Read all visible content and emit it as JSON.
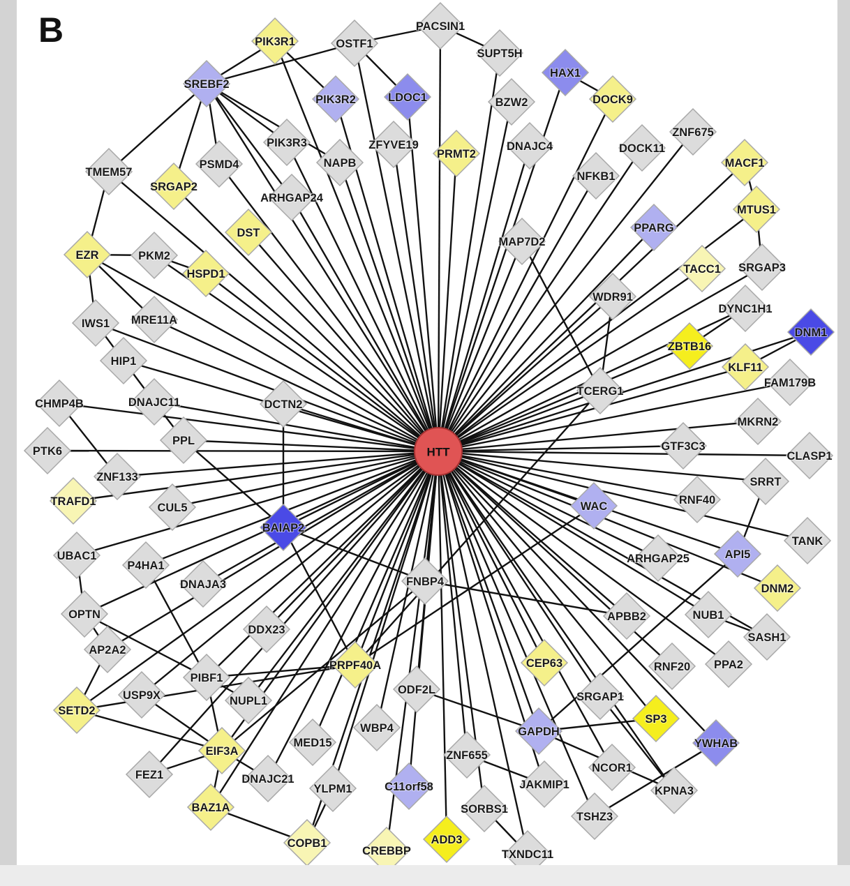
{
  "figure": {
    "panel_letter": "B",
    "hub": {
      "id": "HTT",
      "label": "HTT",
      "color": "#e05454"
    },
    "colors": {
      "gray": "#dcdcdc",
      "yellow": "#f5f08a",
      "light_yellow": "#f8f5b4",
      "bright_yellow": "#f5ee1e",
      "light_blue": "#b0b0f0",
      "blue": "#8c8ced",
      "dark_blue": "#4a4ae6",
      "outline": "#a8a8a8"
    },
    "nodes": [
      {
        "id": "PACSIN1",
        "label": "PACSIN1",
        "color": "gray"
      },
      {
        "id": "PIK3R1",
        "label": "PIK3R1",
        "color": "yellow"
      },
      {
        "id": "OSTF1",
        "label": "OSTF1",
        "color": "gray"
      },
      {
        "id": "SUPT5H",
        "label": "SUPT5H",
        "color": "gray"
      },
      {
        "id": "HAX1",
        "label": "HAX1",
        "color": "blue"
      },
      {
        "id": "SREBF2",
        "label": "SREBF2",
        "color": "light_blue"
      },
      {
        "id": "PIK3R2",
        "label": "PIK3R2",
        "color": "light_blue"
      },
      {
        "id": "LDOC1",
        "label": "LDOC1",
        "color": "blue"
      },
      {
        "id": "DOCK9",
        "label": "DOCK9",
        "color": "yellow"
      },
      {
        "id": "BZW2",
        "label": "BZW2",
        "color": "gray"
      },
      {
        "id": "PIK3R3",
        "label": "PIK3R3",
        "color": "gray"
      },
      {
        "id": "ZFYVE19",
        "label": "ZFYVE19",
        "color": "gray"
      },
      {
        "id": "PRMT2",
        "label": "PRMT2",
        "color": "yellow"
      },
      {
        "id": "DNAJC4",
        "label": "DNAJC4",
        "color": "gray"
      },
      {
        "id": "DOCK11",
        "label": "DOCK11",
        "color": "gray"
      },
      {
        "id": "ZNF675",
        "label": "ZNF675",
        "color": "gray"
      },
      {
        "id": "TMEM57",
        "label": "TMEM57",
        "color": "gray"
      },
      {
        "id": "PSMD4",
        "label": "PSMD4",
        "color": "gray"
      },
      {
        "id": "NAPB",
        "label": "NAPB",
        "color": "gray"
      },
      {
        "id": "NFKB1",
        "label": "NFKB1",
        "color": "gray"
      },
      {
        "id": "MACF1",
        "label": "MACF1",
        "color": "yellow"
      },
      {
        "id": "SRGAP2",
        "label": "SRGAP2",
        "color": "yellow"
      },
      {
        "id": "ARHGAP24",
        "label": "ARHGAP24",
        "color": "gray"
      },
      {
        "id": "MTUS1",
        "label": "MTUS1",
        "color": "yellow"
      },
      {
        "id": "DST",
        "label": "DST",
        "color": "yellow"
      },
      {
        "id": "PPARG",
        "label": "PPARG",
        "color": "light_blue"
      },
      {
        "id": "MAP7D2",
        "label": "MAP7D2",
        "color": "gray"
      },
      {
        "id": "EZR",
        "label": "EZR",
        "color": "yellow"
      },
      {
        "id": "PKM2",
        "label": "PKM2",
        "color": "gray"
      },
      {
        "id": "HSPD1",
        "label": "HSPD1",
        "color": "yellow"
      },
      {
        "id": "TACC1",
        "label": "TACC1",
        "color": "light_yellow"
      },
      {
        "id": "SRGAP3",
        "label": "SRGAP3",
        "color": "gray"
      },
      {
        "id": "WDR91",
        "label": "WDR91",
        "color": "gray"
      },
      {
        "id": "IWS1",
        "label": "IWS1",
        "color": "gray"
      },
      {
        "id": "MRE11A",
        "label": "MRE11A",
        "color": "gray"
      },
      {
        "id": "DYNC1H1",
        "label": "DYNC1H1",
        "color": "gray"
      },
      {
        "id": "DNM1",
        "label": "DNM1",
        "color": "dark_blue"
      },
      {
        "id": "ZBTB16",
        "label": "ZBTB16",
        "color": "bright_yellow"
      },
      {
        "id": "HIP1",
        "label": "HIP1",
        "color": "gray"
      },
      {
        "id": "KLF11",
        "label": "KLF11",
        "color": "yellow"
      },
      {
        "id": "FAM179B",
        "label": "FAM179B",
        "color": "gray"
      },
      {
        "id": "CHMP4B",
        "label": "CHMP4B",
        "color": "gray"
      },
      {
        "id": "DNAJC11",
        "label": "DNAJC11",
        "color": "gray"
      },
      {
        "id": "DCTN2",
        "label": "DCTN2",
        "color": "gray"
      },
      {
        "id": "TCERG1",
        "label": "TCERG1",
        "color": "gray"
      },
      {
        "id": "MKRN2",
        "label": "MKRN2",
        "color": "gray"
      },
      {
        "id": "PTK6",
        "label": "PTK6",
        "color": "gray"
      },
      {
        "id": "PPL",
        "label": "PPL",
        "color": "gray"
      },
      {
        "id": "GTF3C3",
        "label": "GTF3C3",
        "color": "gray"
      },
      {
        "id": "CLASP1",
        "label": "CLASP1",
        "color": "gray"
      },
      {
        "id": "ZNF133",
        "label": "ZNF133",
        "color": "gray"
      },
      {
        "id": "SRRT",
        "label": "SRRT",
        "color": "gray"
      },
      {
        "id": "TRAFD1",
        "label": "TRAFD1",
        "color": "light_yellow"
      },
      {
        "id": "CUL5",
        "label": "CUL5",
        "color": "gray"
      },
      {
        "id": "RNF40",
        "label": "RNF40",
        "color": "gray"
      },
      {
        "id": "WAC",
        "label": "WAC",
        "color": "light_blue"
      },
      {
        "id": "BAIAP2",
        "label": "BAIAP2",
        "color": "dark_blue"
      },
      {
        "id": "TANK",
        "label": "TANK",
        "color": "gray"
      },
      {
        "id": "UBAC1",
        "label": "UBAC1",
        "color": "gray"
      },
      {
        "id": "P4HA1",
        "label": "P4HA1",
        "color": "gray"
      },
      {
        "id": "ARHGAP25",
        "label": "ARHGAP25",
        "color": "gray"
      },
      {
        "id": "API5",
        "label": "API5",
        "color": "light_blue"
      },
      {
        "id": "DNAJA3",
        "label": "DNAJA3",
        "color": "gray"
      },
      {
        "id": "FNBP4",
        "label": "FNBP4",
        "color": "gray"
      },
      {
        "id": "DNM2",
        "label": "DNM2",
        "color": "yellow"
      },
      {
        "id": "OPTN",
        "label": "OPTN",
        "color": "gray"
      },
      {
        "id": "APBB2",
        "label": "APBB2",
        "color": "gray"
      },
      {
        "id": "NUB1",
        "label": "NUB1",
        "color": "gray"
      },
      {
        "id": "DDX23",
        "label": "DDX23",
        "color": "gray"
      },
      {
        "id": "SASH1",
        "label": "SASH1",
        "color": "gray"
      },
      {
        "id": "AP2A2",
        "label": "AP2A2",
        "color": "gray"
      },
      {
        "id": "PRPF40A",
        "label": "PRPF40A",
        "color": "yellow"
      },
      {
        "id": "CEP63",
        "label": "CEP63",
        "color": "yellow"
      },
      {
        "id": "RNF20",
        "label": "RNF20",
        "color": "gray"
      },
      {
        "id": "PPA2",
        "label": "PPA2",
        "color": "gray"
      },
      {
        "id": "PIBF1",
        "label": "PIBF1",
        "color": "gray"
      },
      {
        "id": "USP9X",
        "label": "USP9X",
        "color": "gray"
      },
      {
        "id": "ODF2L",
        "label": "ODF2L",
        "color": "gray"
      },
      {
        "id": "SRGAP1",
        "label": "SRGAP1",
        "color": "gray"
      },
      {
        "id": "SETD2",
        "label": "SETD2",
        "color": "yellow"
      },
      {
        "id": "NUPL1",
        "label": "NUPL1",
        "color": "gray"
      },
      {
        "id": "SP3",
        "label": "SP3",
        "color": "bright_yellow"
      },
      {
        "id": "MED15",
        "label": "MED15",
        "color": "gray"
      },
      {
        "id": "WBP4",
        "label": "WBP4",
        "color": "gray"
      },
      {
        "id": "GAPDH",
        "label": "GAPDH",
        "color": "light_blue"
      },
      {
        "id": "YWHAB",
        "label": "YWHAB",
        "color": "blue"
      },
      {
        "id": "EIF3A",
        "label": "EIF3A",
        "color": "yellow"
      },
      {
        "id": "ZNF655",
        "label": "ZNF655",
        "color": "gray"
      },
      {
        "id": "NCOR1",
        "label": "NCOR1",
        "color": "gray"
      },
      {
        "id": "FEZ1",
        "label": "FEZ1",
        "color": "gray"
      },
      {
        "id": "DNAJC21",
        "label": "DNAJC21",
        "color": "gray"
      },
      {
        "id": "YLPM1",
        "label": "YLPM1",
        "color": "gray"
      },
      {
        "id": "C11orf58",
        "label": "C11orf58",
        "color": "light_blue"
      },
      {
        "id": "JAKMIP1",
        "label": "JAKMIP1",
        "color": "gray"
      },
      {
        "id": "KPNA3",
        "label": "KPNA3",
        "color": "gray"
      },
      {
        "id": "SORBS1",
        "label": "SORBS1",
        "color": "gray"
      },
      {
        "id": "BAZ1A",
        "label": "BAZ1A",
        "color": "yellow"
      },
      {
        "id": "TSHZ3",
        "label": "TSHZ3",
        "color": "gray"
      },
      {
        "id": "COPB1",
        "label": "COPB1",
        "color": "light_yellow"
      },
      {
        "id": "CREBBP",
        "label": "CREBBP",
        "color": "light_yellow"
      },
      {
        "id": "ADD3",
        "label": "ADD3",
        "color": "bright_yellow"
      },
      {
        "id": "TXNDC11",
        "label": "TXNDC11",
        "color": "gray"
      }
    ],
    "extra_edges": [
      [
        "SREBF2",
        "PIK3R1"
      ],
      [
        "SREBF2",
        "OSTF1"
      ],
      [
        "OSTF1",
        "PACSIN1"
      ],
      [
        "PACSIN1",
        "SUPT5H"
      ],
      [
        "PIK3R1",
        "PIK3R2"
      ],
      [
        "OSTF1",
        "LDOC1"
      ],
      [
        "HAX1",
        "DOCK9"
      ],
      [
        "SREBF2",
        "PIK3R3"
      ],
      [
        "SREBF2",
        "PSMD4"
      ],
      [
        "SREBF2",
        "SRGAP2"
      ],
      [
        "SREBF2",
        "TMEM57"
      ],
      [
        "SREBF2",
        "ARHGAP24"
      ],
      [
        "SREBF2",
        "NAPB"
      ],
      [
        "TMEM57",
        "EZR"
      ],
      [
        "EZR",
        "PKM2"
      ],
      [
        "PKM2",
        "HSPD1"
      ],
      [
        "EZR",
        "IWS1"
      ],
      [
        "EZR",
        "MRE11A"
      ],
      [
        "IWS1",
        "HIP1"
      ],
      [
        "HIP1",
        "DNAJC11"
      ],
      [
        "DNAJC11",
        "PPL"
      ],
      [
        "PPL",
        "BAIAP2"
      ],
      [
        "DCTN2",
        "BAIAP2"
      ],
      [
        "CHMP4B",
        "ZNF133"
      ],
      [
        "MTUS1",
        "SRGAP3"
      ],
      [
        "MACF1",
        "MTUS1"
      ],
      [
        "ZBTB16",
        "DYNC1H1"
      ],
      [
        "MAP7D2",
        "TCERG1"
      ],
      [
        "WDR91",
        "TCERG1"
      ],
      [
        "TCERG1",
        "PRPF40A"
      ],
      [
        "BAIAP2",
        "FNBP4"
      ],
      [
        "BAIAP2",
        "PRPF40A"
      ],
      [
        "FNBP4",
        "APBB2"
      ],
      [
        "UBAC1",
        "OPTN"
      ],
      [
        "OPTN",
        "PIBF1"
      ],
      [
        "OPTN",
        "AP2A2"
      ],
      [
        "AP2A2",
        "SETD2"
      ],
      [
        "P4HA1",
        "PIBF1"
      ],
      [
        "PIBF1",
        "PRPF40A"
      ],
      [
        "PIBF1",
        "NUPL1"
      ],
      [
        "PIBF1",
        "EIF3A"
      ],
      [
        "USP9X",
        "EIF3A"
      ],
      [
        "SETD2",
        "EIF3A"
      ],
      [
        "SETD2",
        "PRPF40A"
      ],
      [
        "EIF3A",
        "FEZ1"
      ],
      [
        "EIF3A",
        "DNAJC21"
      ],
      [
        "EIF3A",
        "BAZ1A"
      ],
      [
        "BAZ1A",
        "COPB1"
      ],
      [
        "COPB1",
        "YLPM1"
      ],
      [
        "ODF2L",
        "GAPDH"
      ],
      [
        "GAPDH",
        "SP3"
      ],
      [
        "GAPDH",
        "KPNA3"
      ],
      [
        "GAPDH",
        "API5"
      ],
      [
        "SRGAP1",
        "KPNA3"
      ],
      [
        "TSHZ3",
        "YWHAB"
      ],
      [
        "SORBS1",
        "TXNDC11"
      ],
      [
        "ZNF655",
        "JAKMIP1"
      ],
      [
        "API5",
        "SRRT"
      ],
      [
        "NUB1",
        "SASH1"
      ],
      [
        "WAC",
        "PRPF40A"
      ],
      [
        "DNM1",
        "KLF11"
      ],
      [
        "FNBP4",
        "EIF3A"
      ]
    ]
  }
}
